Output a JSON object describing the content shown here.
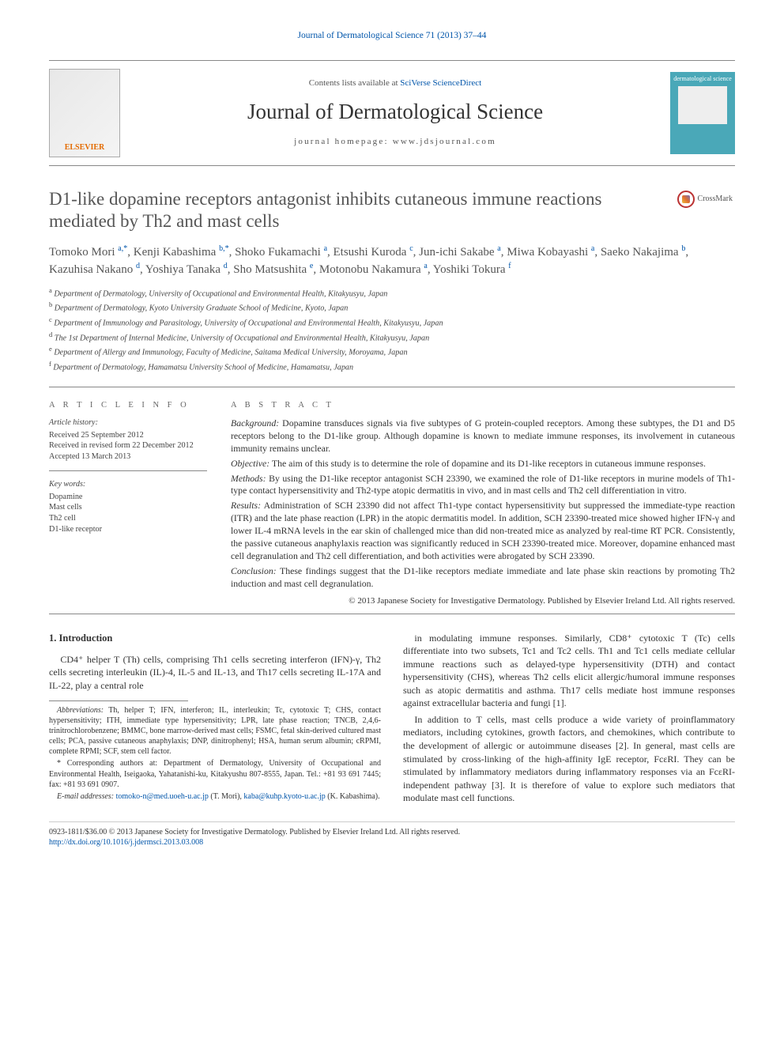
{
  "header_link": "Journal of Dermatological Science 71 (2013) 37–44",
  "masthead": {
    "publisher_label": "ELSEVIER",
    "contents_prefix": "Contents lists available at ",
    "contents_link": "SciVerse ScienceDirect",
    "journal_title": "Journal of Dermatological Science",
    "homepage_prefix": "journal homepage: ",
    "homepage_url": "www.jdsjournal.com",
    "cover_tag": "dermatological science"
  },
  "crossmark_label": "CrossMark",
  "article": {
    "title": "D1-like dopamine receptors antagonist inhibits cutaneous immune reactions mediated by Th2 and mast cells",
    "authors_html": "Tomoko Mori <sup>a,*</sup>, Kenji Kabashima <sup>b,*</sup>, Shoko Fukamachi <sup>a</sup>, Etsushi Kuroda <sup>c</sup>, Jun-ichi Sakabe <sup>a</sup>, Miwa Kobayashi <sup>a</sup>, Saeko Nakajima <sup>b</sup>, Kazuhisa Nakano <sup>d</sup>, Yoshiya Tanaka <sup>d</sup>, Sho Matsushita <sup>e</sup>, Motonobu Nakamura <sup>a</sup>, Yoshiki Tokura <sup>f</sup>",
    "affiliations": [
      {
        "key": "a",
        "text": "Department of Dermatology, University of Occupational and Environmental Health, Kitakyusyu, Japan"
      },
      {
        "key": "b",
        "text": "Department of Dermatology, Kyoto University Graduate School of Medicine, Kyoto, Japan"
      },
      {
        "key": "c",
        "text": "Department of Immunology and Parasitology, University of Occupational and Environmental Health, Kitakyusyu, Japan"
      },
      {
        "key": "d",
        "text": "The 1st Department of Internal Medicine, University of Occupational and Environmental Health, Kitakyusyu, Japan"
      },
      {
        "key": "e",
        "text": "Department of Allergy and Immunology, Faculty of Medicine, Saitama Medical University, Moroyama, Japan"
      },
      {
        "key": "f",
        "text": "Department of Dermatology, Hamamatsu University School of Medicine, Hamamatsu, Japan"
      }
    ]
  },
  "labels": {
    "article_info": "A R T I C L E   I N F O",
    "abstract": "A B S T R A C T",
    "history_head": "Article history:",
    "keywords_head": "Key words:"
  },
  "history": {
    "received": "Received 25 September 2012",
    "revised": "Received in revised form 22 December 2012",
    "accepted": "Accepted 13 March 2013"
  },
  "keywords": [
    "Dopamine",
    "Mast cells",
    "Th2 cell",
    "D1-like receptor"
  ],
  "abstract": {
    "background_label": "Background:",
    "background": " Dopamine transduces signals via five subtypes of G protein-coupled receptors. Among these subtypes, the D1 and D5 receptors belong to the D1-like group. Although dopamine is known to mediate immune responses, its involvement in cutaneous immunity remains unclear.",
    "objective_label": "Objective:",
    "objective": " The aim of this study is to determine the role of dopamine and its D1-like receptors in cutaneous immune responses.",
    "methods_label": "Methods:",
    "methods": " By using the D1-like receptor antagonist SCH 23390, we examined the role of D1-like receptors in murine models of Th1-type contact hypersensitivity and Th2-type atopic dermatitis in vivo, and in mast cells and Th2 cell differentiation in vitro.",
    "results_label": "Results:",
    "results": " Administration of SCH 23390 did not affect Th1-type contact hypersensitivity but suppressed the immediate-type reaction (ITR) and the late phase reaction (LPR) in the atopic dermatitis model. In addition, SCH 23390-treated mice showed higher IFN-γ and lower IL-4 mRNA levels in the ear skin of challenged mice than did non-treated mice as analyzed by real-time RT PCR. Consistently, the passive cutaneous anaphylaxis reaction was significantly reduced in SCH 23390-treated mice. Moreover, dopamine enhanced mast cell degranulation and Th2 cell differentiation, and both activities were abrogated by SCH 23390.",
    "conclusion_label": "Conclusion:",
    "conclusion": " These findings suggest that the D1-like receptors mediate immediate and late phase skin reactions by promoting Th2 induction and mast cell degranulation.",
    "copyright": "© 2013 Japanese Society for Investigative Dermatology. Published by Elsevier Ireland Ltd. All rights reserved."
  },
  "intro": {
    "heading": "1. Introduction",
    "p1": "CD4⁺ helper T (Th) cells, comprising Th1 cells secreting interferon (IFN)-γ, Th2 cells secreting interleukin (IL)-4, IL-5 and IL-13, and Th17 cells secreting IL-17A and IL-22, play a central role",
    "p2": "in modulating immune responses. Similarly, CD8⁺ cytotoxic T (Tc) cells differentiate into two subsets, Tc1 and Tc2 cells. Th1 and Tc1 cells mediate cellular immune reactions such as delayed-type hypersensitivity (DTH) and contact hypersensitivity (CHS), whereas Th2 cells elicit allergic/humoral immune responses such as atopic dermatitis and asthma. Th17 cells mediate host immune responses against extracellular bacteria and fungi [1].",
    "p3": "In addition to T cells, mast cells produce a wide variety of proinflammatory mediators, including cytokines, growth factors, and chemokines, which contribute to the development of allergic or autoimmune diseases [2]. In general, mast cells are stimulated by cross-linking of the high-affinity IgE receptor, FcεRI. They can be stimulated by inflammatory mediators during inflammatory responses via an FcεRI-independent pathway [3]. It is therefore of value to explore such mediators that modulate mast cell functions."
  },
  "footnotes": {
    "abbr_label": "Abbreviations:",
    "abbr": " Th, helper T; IFN, interferon; IL, interleukin; Tc, cytotoxic T; CHS, contact hypersensitivity; ITH, immediate type hypersensitivity; LPR, late phase reaction; TNCB, 2,4,6-trinitrochlorobenzene; BMMC, bone marrow-derived mast cells; FSMC, fetal skin-derived cultured mast cells; PCA, passive cutaneous anaphylaxis; DNP, dinitrophenyl; HSA, human serum albumin; cRPMI, complete RPMI; SCF, stem cell factor.",
    "corr_label": "*",
    "corr": " Corresponding authors at: Department of Dermatology, University of Occupational and Environmental Health, Iseigaoka, Yahatanishi-ku, Kitakyushu 807-8555, Japan. Tel.: +81 93 691 7445; fax: +81 93 691 0907.",
    "email_label": "E-mail addresses:",
    "email1": "tomoko-n@med.uoeh-u.ac.jp",
    "email1_who": " (T. Mori),",
    "email2": "kaba@kuhp.kyoto-u.ac.jp",
    "email2_who": " (K. Kabashima)."
  },
  "bottom": {
    "issn_line": "0923-1811/$36.00 © 2013 Japanese Society for Investigative Dermatology. Published by Elsevier Ireland Ltd. All rights reserved.",
    "doi": "http://dx.doi.org/10.1016/j.jdermsci.2013.03.008"
  },
  "colors": {
    "link": "#0055aa",
    "text": "#333333",
    "muted": "#555555",
    "publisher": "#e46b00",
    "cover": "#4aa8b8"
  }
}
